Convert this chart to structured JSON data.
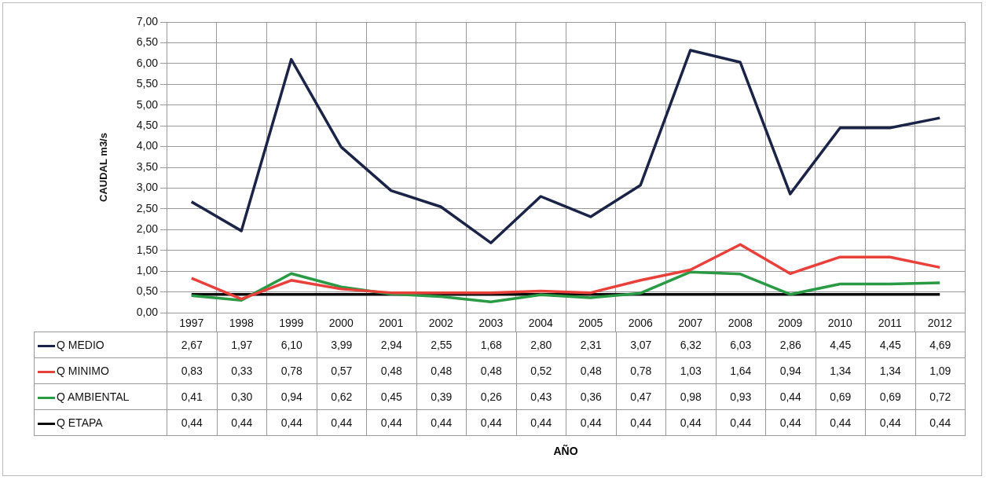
{
  "chart_data": {
    "type": "line",
    "annotations": [
      "AÑO"
    ],
    "ylabel": "CAUDAL m3/s",
    "categories": [
      "1997",
      "1998",
      "1999",
      "2000",
      "2001",
      "2002",
      "2003",
      "2004",
      "2005",
      "2006",
      "2007",
      "2008",
      "2009",
      "2010",
      "2011",
      "2012"
    ],
    "series": [
      {
        "name": "Q MEDIO",
        "color": "#1b2447",
        "values": [
          2.67,
          1.97,
          6.1,
          3.99,
          2.94,
          2.55,
          1.68,
          2.8,
          2.31,
          3.07,
          6.32,
          6.03,
          2.86,
          4.45,
          4.45,
          4.69
        ],
        "value_labels": [
          "2,67",
          "1,97",
          "6,10",
          "3,99",
          "2,94",
          "2,55",
          "1,68",
          "2,80",
          "2,31",
          "3,07",
          "6,32",
          "6,03",
          "2,86",
          "4,45",
          "4,45",
          "4,69"
        ]
      },
      {
        "name": "Q MINIMO",
        "color": "#e8403a",
        "values": [
          0.83,
          0.33,
          0.78,
          0.57,
          0.48,
          0.48,
          0.48,
          0.52,
          0.48,
          0.78,
          1.03,
          1.64,
          0.94,
          1.34,
          1.34,
          1.09
        ],
        "value_labels": [
          "0,83",
          "0,33",
          "0,78",
          "0,57",
          "0,48",
          "0,48",
          "0,48",
          "0,52",
          "0,48",
          "0,78",
          "1,03",
          "1,64",
          "0,94",
          "1,34",
          "1,34",
          "1,09"
        ]
      },
      {
        "name": "Q AMBIENTAL",
        "color": "#2a9a45",
        "values": [
          0.41,
          0.3,
          0.94,
          0.62,
          0.45,
          0.39,
          0.26,
          0.43,
          0.36,
          0.47,
          0.98,
          0.93,
          0.44,
          0.69,
          0.69,
          0.72
        ],
        "value_labels": [
          "0,41",
          "0,30",
          "0,94",
          "0,62",
          "0,45",
          "0,39",
          "0,26",
          "0,43",
          "0,36",
          "0,47",
          "0,98",
          "0,93",
          "0,44",
          "0,69",
          "0,69",
          "0,72"
        ]
      },
      {
        "name": "Q ETAPA",
        "color": "#0a0a0a",
        "values": [
          0.44,
          0.44,
          0.44,
          0.44,
          0.44,
          0.44,
          0.44,
          0.44,
          0.44,
          0.44,
          0.44,
          0.44,
          0.44,
          0.44,
          0.44,
          0.44
        ],
        "value_labels": [
          "0,44",
          "0,44",
          "0,44",
          "0,44",
          "0,44",
          "0,44",
          "0,44",
          "0,44",
          "0,44",
          "0,44",
          "0,44",
          "0,44",
          "0,44",
          "0,44",
          "0,44",
          "0,44"
        ]
      }
    ],
    "ylim": [
      0,
      7
    ],
    "yticks": [
      {
        "value": 0,
        "label": "0,00"
      },
      {
        "value": 0.5,
        "label": "0,50"
      },
      {
        "value": 1,
        "label": "1,00"
      },
      {
        "value": 1.5,
        "label": "1,50"
      },
      {
        "value": 2,
        "label": "2,00"
      },
      {
        "value": 2.5,
        "label": "2,50"
      },
      {
        "value": 3,
        "label": "3,00"
      },
      {
        "value": 3.5,
        "label": "3,50"
      },
      {
        "value": 4,
        "label": "4,00"
      },
      {
        "value": 4.5,
        "label": "4,50"
      },
      {
        "value": 5,
        "label": "5,00"
      },
      {
        "value": 5.5,
        "label": "5,50"
      },
      {
        "value": 6,
        "label": "6,00"
      },
      {
        "value": 6.5,
        "label": "6,50"
      },
      {
        "value": 7,
        "label": "7,00"
      }
    ],
    "grid": true,
    "legend": "bottom",
    "marker": "none",
    "line_style": "solid"
  }
}
